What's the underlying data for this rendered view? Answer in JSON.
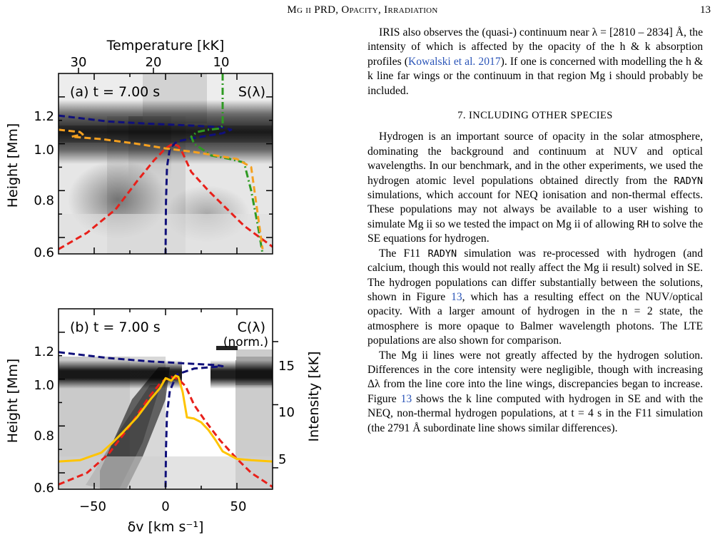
{
  "header": {
    "title": "Mg ii PRD, Opacity, Irradiation",
    "page_number": "13"
  },
  "figure": {
    "top_axis_label": "Temperature [kK]",
    "top_ticks": [
      "30",
      "20",
      "10"
    ],
    "panel_a": {
      "label": "(a) t = 7.00 s",
      "quantity": "S(λ)",
      "ylabel": "Height [Mm]",
      "yticks": [
        "1.2",
        "1.0",
        "0.8",
        "0.6"
      ]
    },
    "panel_b": {
      "label": "(b) t = 7.00 s",
      "quantity": "C(λ)",
      "quantity_note": "(norm.)",
      "ylabel": "Height [Mm]",
      "yticks": [
        "1.2",
        "1.0",
        "0.8",
        "0.6"
      ],
      "right_label": "Intensity [kK]",
      "right_ticks": [
        "15",
        "10",
        "5"
      ]
    },
    "xlabel": "δv [km s⁻¹]",
    "xticks": [
      "−50",
      "0",
      "50"
    ],
    "colors": {
      "blue": "#10107a",
      "red": "#e8201a",
      "green": "#2e9a22",
      "orange": "#f5a020",
      "yellow": "#ffc400"
    }
  },
  "chart_data": [
    {
      "type": "heatmap",
      "title": "(a) t = 7.00 s",
      "quantity": "S(λ)",
      "xlabel": "δv [km s⁻¹]",
      "ylabel": "Height [Mm]",
      "top_xlabel": "Temperature [kK]",
      "xlim": [
        -75,
        75
      ],
      "ylim": [
        0.53,
        1.3
      ],
      "top_axis_ticks": [
        30,
        20,
        10
      ],
      "series": [
        {
          "name": "blue dashed",
          "x": [
            -75,
            -40,
            -10,
            20,
            40,
            46,
            40,
            20,
            8,
            3,
            1,
            0.3,
            0
          ],
          "y": [
            1.12,
            1.095,
            1.085,
            1.077,
            1.07,
            1.06,
            1.045,
            1.025,
            1.01,
            0.98,
            0.9,
            0.75,
            0.53
          ]
        },
        {
          "name": "red dashed",
          "x": [
            -75,
            -55,
            -35,
            -20,
            -8,
            0,
            5,
            9,
            12,
            18,
            24,
            30,
            40,
            55,
            75
          ],
          "y": [
            0.55,
            0.62,
            0.72,
            0.84,
            0.93,
            0.98,
            1.0,
            0.99,
            0.96,
            0.88,
            0.84,
            0.8,
            0.74,
            0.65,
            0.56
          ]
        },
        {
          "name": "green dash-dot",
          "x": [
            40,
            40,
            38,
            30,
            22,
            18,
            20,
            32,
            45,
            55,
            60,
            65,
            68
          ],
          "y": [
            1.3,
            1.077,
            1.065,
            1.06,
            1.05,
            1.03,
            1.0,
            0.95,
            0.935,
            0.92,
            0.8,
            0.64,
            0.53
          ]
        },
        {
          "name": "orange dashed",
          "x": [
            -75,
            -60,
            -58,
            -66,
            -45,
            -20,
            0,
            20,
            30,
            40,
            50,
            60,
            68
          ],
          "y": [
            1.06,
            1.05,
            1.04,
            1.03,
            1.02,
            1.0,
            0.98,
            0.965,
            0.955,
            0.945,
            0.935,
            0.9,
            0.55
          ]
        }
      ]
    },
    {
      "type": "heatmap",
      "title": "(b) t = 7.00 s",
      "quantity": "C(λ) (norm.)",
      "xlabel": "δv [km s⁻¹]",
      "ylabel": "Height [Mm]",
      "right_ylabel": "Intensity [kK]",
      "xlim": [
        -75,
        75
      ],
      "ylim": [
        0.53,
        1.3
      ],
      "right_ylim": [
        3.3,
        17.6
      ],
      "series": [
        {
          "name": "blue dashed",
          "x": [
            -75,
            -40,
            -10,
            20,
            35,
            40,
            20,
            8,
            3,
            1,
            0.3,
            0
          ],
          "y": [
            1.115,
            1.09,
            1.075,
            1.065,
            1.06,
            1.055,
            1.045,
            1.02,
            0.95,
            0.85,
            0.7,
            0.53
          ]
        },
        {
          "name": "red dashed",
          "x": [
            -75,
            -55,
            -40,
            -25,
            -12,
            -4,
            0,
            4,
            9,
            14,
            20,
            28,
            38,
            50,
            60,
            75
          ],
          "y": [
            0.55,
            0.6,
            0.68,
            0.8,
            0.92,
            0.98,
            1.0,
            1.01,
            1.0,
            0.97,
            0.89,
            0.82,
            0.74,
            0.66,
            0.6,
            0.54
          ]
        },
        {
          "name": "yellow intensity",
          "x": [
            -75,
            -60,
            -45,
            -38,
            -30,
            -20,
            -10,
            -4,
            0,
            4,
            7,
            9,
            12,
            15,
            20,
            25,
            30,
            35,
            40,
            50,
            60,
            75
          ],
          "y": [
            5.5,
            5.6,
            6.2,
            6.9,
            7.8,
            9.0,
            10.5,
            11.3,
            12.1,
            11.9,
            12.3,
            12.2,
            11.0,
            9.0,
            8.9,
            8.6,
            8.0,
            7.2,
            6.3,
            5.7,
            5.6,
            5.5
          ]
        }
      ]
    }
  ],
  "text": {
    "p1": "IRIS also observes the (quasi-) continuum near λ = [2810 – 2834] Å, the intensity of which is affected by the opacity of the h & k absorption profiles (",
    "p1_link": "Kowalski et al. 2017",
    "p1_end": "). If one is concerned with modelling the h & k line far wings or the continuum in that region Mg i should probably be included.",
    "section": "7. INCLUDING OTHER SPECIES",
    "p2a": "Hydrogen is an important source of opacity in the solar atmosphere, dominating the background and continuum at NUV and optical wavelengths. In our benchmark, and in the other experiments, we used the hydrogen atomic level populations obtained directly from the ",
    "p2_code": "RADYN",
    "p2b": " simulations, which account for NEQ ionisation and non-thermal effects. These populations may not always be available to a user wishing to simulate Mg ii so we tested the impact on Mg ii of allowing ",
    "p2_code2": "RH",
    "p2c": " to solve the SE equations for hydrogen.",
    "p3a": "The F11 ",
    "p3_code": "RADYN",
    "p3b": " simulation was re-processed with hydrogen (and calcium, though this would not really affect the Mg ii result) solved in SE. The hydrogen populations can differ substantially between the solutions, shown in Figure ",
    "p3_link": "13",
    "p3c": ", which has a resulting effect on the NUV/optical opacity. With a larger amount of hydrogen in the n = 2 state, the atmosphere is more opaque to Balmer wavelength photons. The LTE populations are also shown for comparison.",
    "p4a": "The Mg ii lines were not greatly affected by the hydrogen solution. Differences in the core intensity were negligible, though with increasing Δλ from the line core into the line wings, discrepancies began to increase. Figure ",
    "p4_link": "13",
    "p4b": " shows the k line computed with hydrogen in SE and with the NEQ, non-thermal hydrogen populations, at t = 4 s in the F11 simulation (the 2791 Å subordinate line shows similar differences)."
  }
}
